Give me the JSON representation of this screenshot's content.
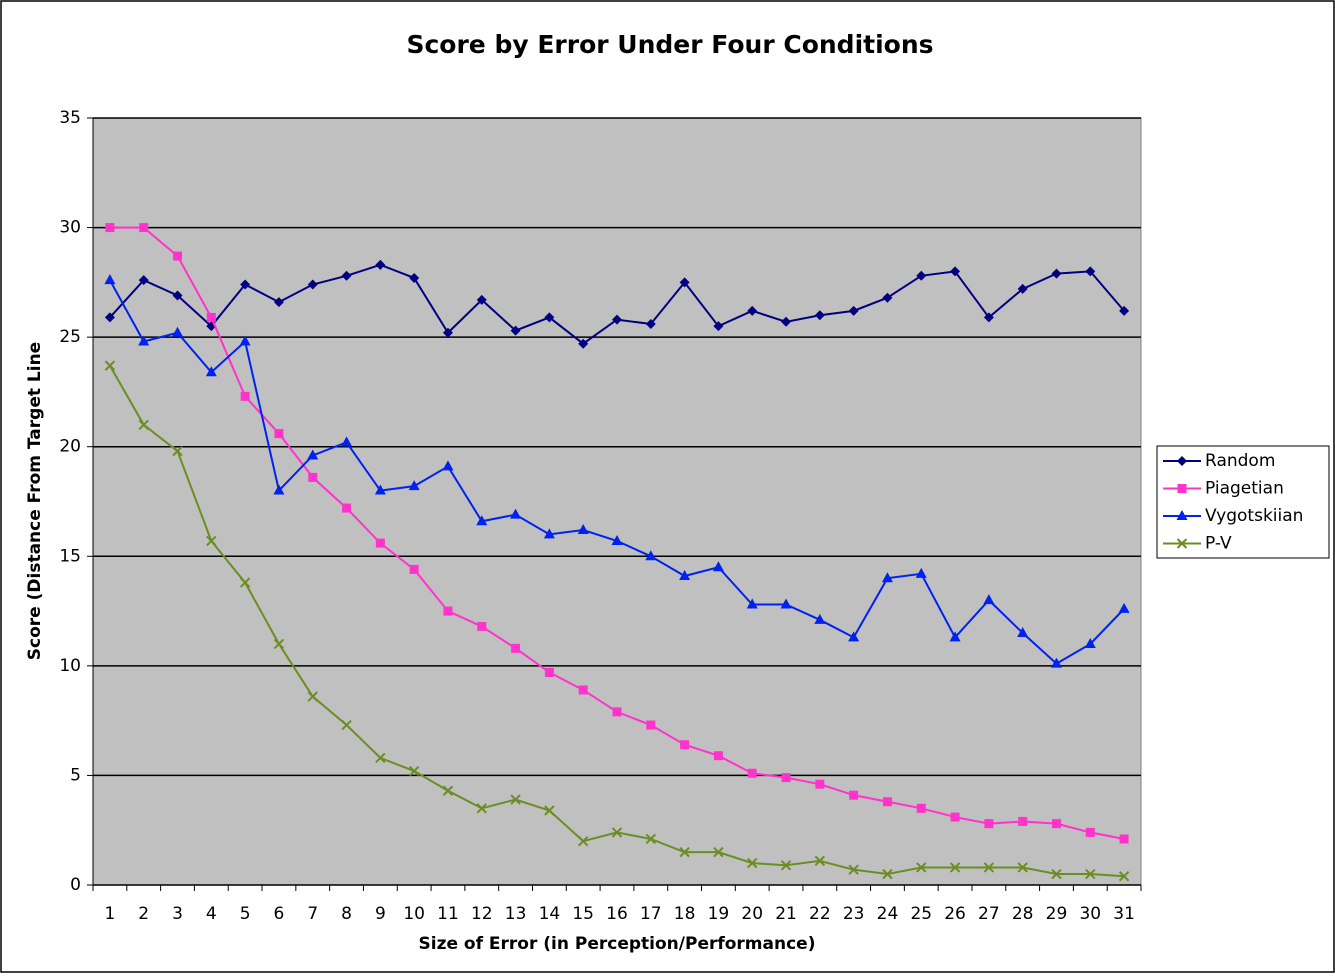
{
  "chart_data": {
    "type": "line",
    "title": "Score by Error Under Four Conditions",
    "x_label": "Size of Error (in Perception/Performance)",
    "y_label": "Score (Distance From Target Line",
    "categories": [
      "1",
      "2",
      "3",
      "4",
      "5",
      "6",
      "7",
      "8",
      "9",
      "10",
      "11",
      "12",
      "13",
      "14",
      "15",
      "16",
      "17",
      "18",
      "19",
      "20",
      "21",
      "22",
      "23",
      "24",
      "25",
      "26",
      "27",
      "28",
      "29",
      "30",
      "31"
    ],
    "series": [
      {
        "name": "Random",
        "color": "#000080",
        "marker": "diamond",
        "values": [
          25.9,
          27.6,
          26.9,
          25.5,
          27.4,
          26.6,
          27.4,
          27.8,
          28.3,
          27.7,
          25.2,
          26.7,
          25.3,
          25.9,
          24.7,
          25.8,
          25.6,
          27.5,
          25.5,
          26.2,
          25.7,
          26.0,
          26.2,
          26.8,
          27.8,
          28.0,
          25.9,
          27.2,
          27.9,
          28.0,
          26.2
        ]
      },
      {
        "name": "Piagetian",
        "color": "#ff33cc",
        "marker": "square",
        "values": [
          30.0,
          30.0,
          28.7,
          25.9,
          22.3,
          20.6,
          18.6,
          17.2,
          15.6,
          14.4,
          12.5,
          11.8,
          10.8,
          9.7,
          8.9,
          7.9,
          7.3,
          6.4,
          5.9,
          5.1,
          4.9,
          4.6,
          4.1,
          3.8,
          3.5,
          3.1,
          2.8,
          2.9,
          2.8,
          2.4,
          2.1
        ]
      },
      {
        "name": "Vygotskiian",
        "color": "#0022ee",
        "marker": "triangle",
        "values": [
          27.6,
          24.8,
          25.2,
          23.4,
          24.8,
          18.0,
          19.6,
          20.2,
          18.0,
          18.2,
          19.1,
          16.6,
          16.9,
          16.0,
          16.2,
          15.7,
          15.0,
          14.1,
          14.5,
          12.8,
          12.8,
          12.1,
          11.3,
          14.0,
          14.2,
          11.3,
          13.0,
          11.5,
          10.1,
          11.0,
          12.6
        ]
      },
      {
        "name": "P-V",
        "color": "#6b8e23",
        "marker": "x",
        "values": [
          23.7,
          21.0,
          19.8,
          15.7,
          13.8,
          11.0,
          8.6,
          7.3,
          5.8,
          5.2,
          4.3,
          3.5,
          3.9,
          3.4,
          2.0,
          2.4,
          2.1,
          1.5,
          1.5,
          1.0,
          0.9,
          1.1,
          0.7,
          0.5,
          0.8,
          0.8,
          0.8,
          0.8,
          0.5,
          0.5,
          0.4
        ]
      }
    ],
    "ylim": [
      0,
      35
    ],
    "yticks": [
      0,
      5,
      10,
      15,
      20,
      25,
      30,
      35
    ],
    "grid": true,
    "legend": "right",
    "plot_background": "#c0c0c0"
  }
}
